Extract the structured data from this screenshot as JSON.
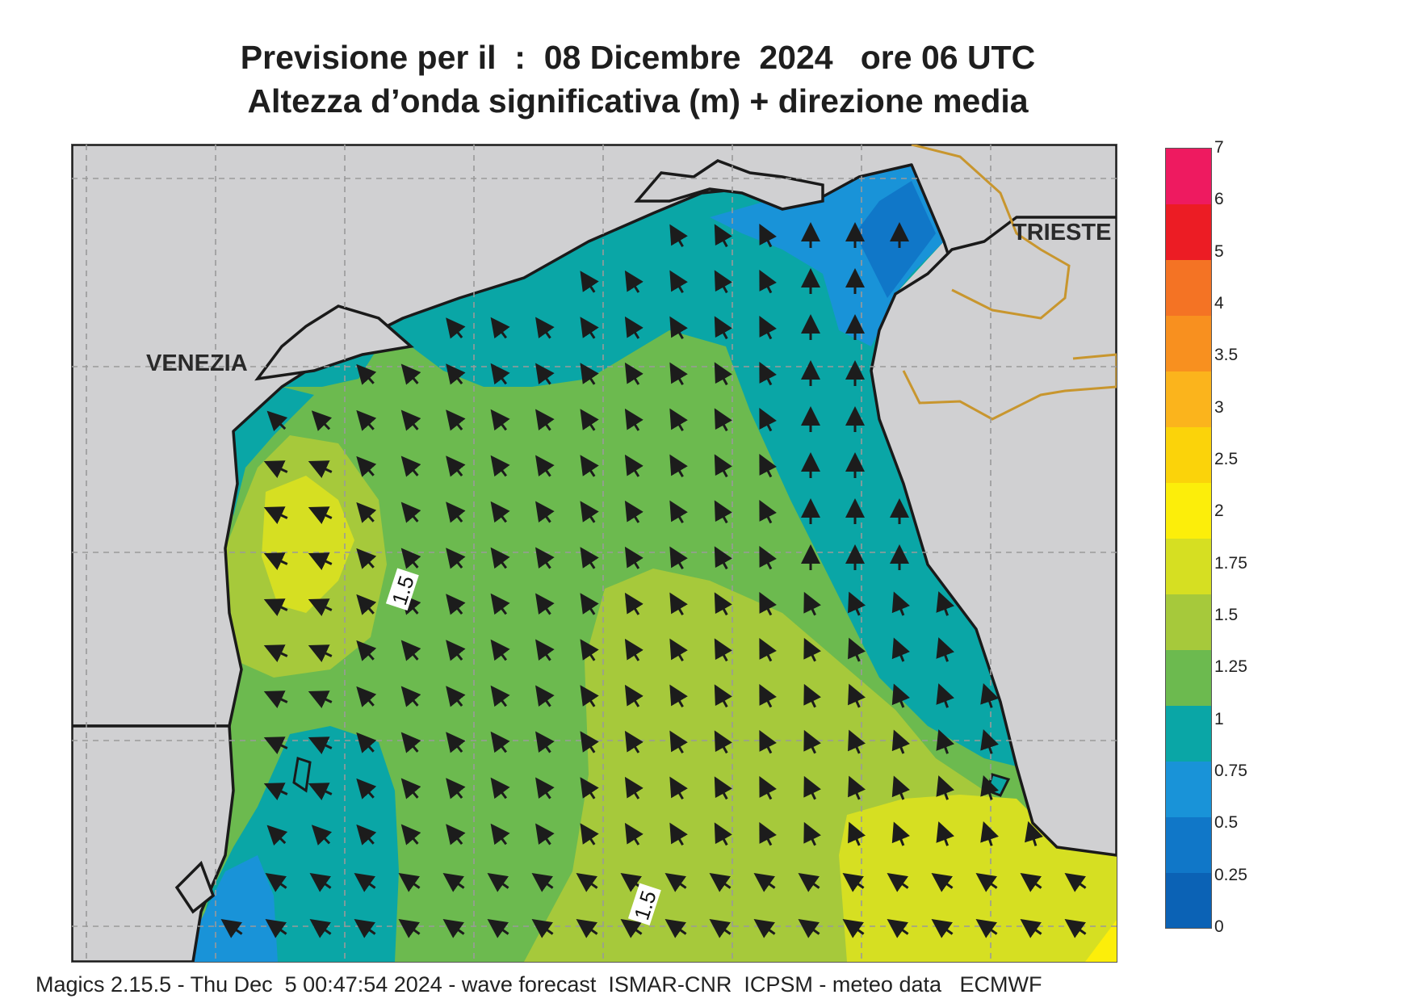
{
  "header": {
    "line1": "Previsione per il  :  08 Dicembre  2024   ore 06 UTC",
    "line2": "Altezza d’onda significativa (m) + direzione media"
  },
  "map": {
    "cities": [
      "VENEZIA",
      "TRIESTE"
    ],
    "contour_labels": [
      "1.5",
      "1.5"
    ],
    "colors": {
      "land": "#d0d0d2",
      "coast": "#1a1a1a",
      "border": "#c8962e",
      "grid": "#9a9a9a",
      "arrow": "#1c1c1c"
    },
    "wave_direction": "towards north-west"
  },
  "legend": {
    "ticks": [
      "0",
      "0.25",
      "0.5",
      "0.75",
      "1",
      "1.25",
      "1.5",
      "1.75",
      "2",
      "2.5",
      "3",
      "3.5",
      "4",
      "5",
      "6",
      "7"
    ],
    "colors": [
      "#0b62b5",
      "#1077c8",
      "#1993d8",
      "#0aa6a6",
      "#6cba4f",
      "#a6c93b",
      "#d6df22",
      "#fcee0a",
      "#fbd30a",
      "#fbb41c",
      "#f8901f",
      "#f47324",
      "#ec1c24",
      "#ee1a60"
    ]
  },
  "footer": "Magics 2.15.5 - Thu Dec  5 00:47:54 2024 - wave forecast  ISMAR-CNR  ICPSM - meteo data   ECMWF"
}
